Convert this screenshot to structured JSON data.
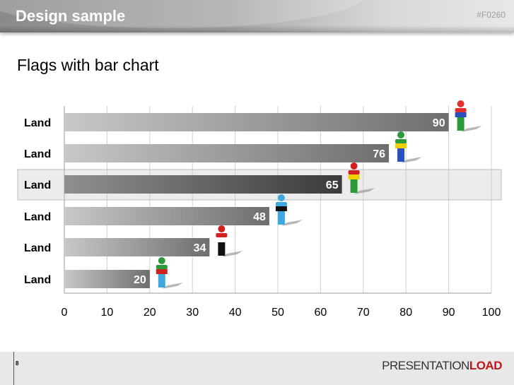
{
  "header": {
    "title": "Design sample",
    "code": "#F0260"
  },
  "subtitle": "Flags with bar chart",
  "footer": {
    "page": "8",
    "logo_part1": "PRESENTATION",
    "logo_part2": "LOAD"
  },
  "chart_data": {
    "type": "bar",
    "orientation": "horizontal",
    "categories": [
      "Land",
      "Land",
      "Land",
      "Land",
      "Land",
      "Land"
    ],
    "values": [
      90,
      76,
      65,
      48,
      34,
      20
    ],
    "highlighted_index": 2,
    "xlim": [
      0,
      100
    ],
    "xticks": [
      0,
      10,
      20,
      30,
      40,
      50,
      60,
      70,
      80,
      90,
      100
    ],
    "grid": true,
    "figure_colors": [
      [
        "#e03030",
        "#2a50c0",
        "#2a9a3a"
      ],
      [
        "#2a9a3a",
        "#f0d000",
        "#2a50c0"
      ],
      [
        "#d02020",
        "#f0d000",
        "#2a9a3a"
      ],
      [
        "#40a8e0",
        "#111111",
        "#40a8e0"
      ],
      [
        "#d02020",
        "#ffffff",
        "#111111"
      ],
      [
        "#2a9a3a",
        "#d02020",
        "#40a8e0"
      ]
    ]
  }
}
